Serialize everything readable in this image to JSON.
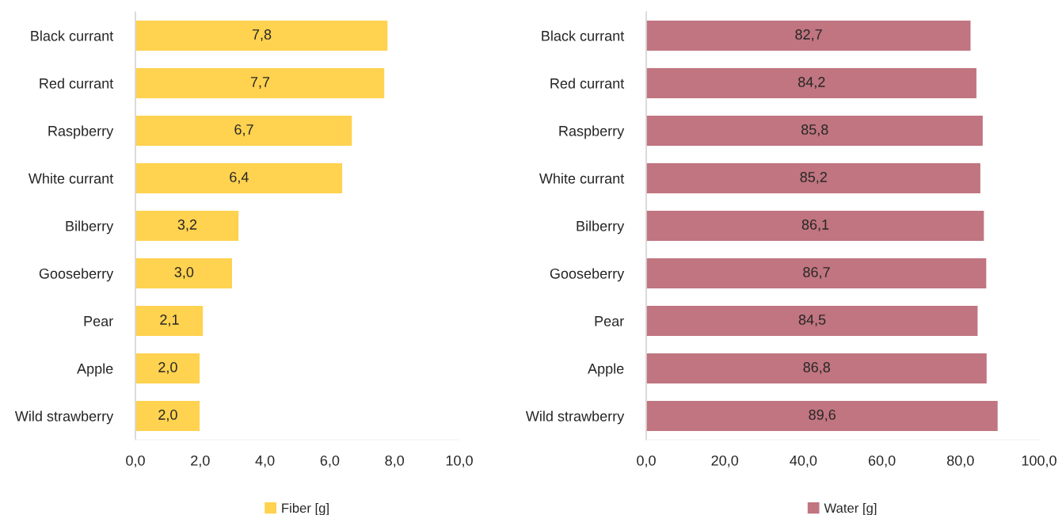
{
  "chart_data": [
    {
      "type": "bar",
      "orientation": "horizontal",
      "categories": [
        "Black currant",
        "Red currant",
        "Raspberry",
        "White currant",
        "Bilberry",
        "Gooseberry",
        "Pear",
        "Apple",
        "Wild strawberry"
      ],
      "series": [
        {
          "name": "Fiber [g]",
          "color": "#ffd24f",
          "values": [
            7.8,
            7.7,
            6.7,
            6.4,
            3.2,
            3.0,
            2.1,
            2.0,
            2.0
          ],
          "value_labels": [
            "7,8",
            "7,7",
            "6,7",
            "6,4",
            "3,2",
            "3,0",
            "2,1",
            "2,0",
            "2,0"
          ]
        }
      ],
      "xlim": [
        0,
        10
      ],
      "xticks": [
        {
          "value": 0,
          "label": "0,0"
        },
        {
          "value": 2,
          "label": "2,0"
        },
        {
          "value": 4,
          "label": "4,0"
        },
        {
          "value": 6,
          "label": "6,0"
        },
        {
          "value": 8,
          "label": "8,0"
        },
        {
          "value": 10,
          "label": "10,0"
        }
      ],
      "grid": false,
      "legend": "bottom"
    },
    {
      "type": "bar",
      "orientation": "horizontal",
      "categories": [
        "Black currant",
        "Red currant",
        "Raspberry",
        "White currant",
        "Bilberry",
        "Gooseberry",
        "Pear",
        "Apple",
        "Wild strawberry"
      ],
      "series": [
        {
          "name": "Water [g]",
          "color": "#c07580",
          "values": [
            82.7,
            84.2,
            85.8,
            85.2,
            86.1,
            86.7,
            84.5,
            86.8,
            89.6
          ],
          "value_labels": [
            "82,7",
            "84,2",
            "85,8",
            "85,2",
            "86,1",
            "86,7",
            "84,5",
            "86,8",
            "89,6"
          ]
        }
      ],
      "xlim": [
        0,
        100
      ],
      "xticks": [
        {
          "value": 0,
          "label": "0,0"
        },
        {
          "value": 20,
          "label": "20,0"
        },
        {
          "value": 40,
          "label": "40,0"
        },
        {
          "value": 60,
          "label": "60,0"
        },
        {
          "value": 80,
          "label": "80,0"
        },
        {
          "value": 100,
          "label": "100,0"
        }
      ],
      "grid": false,
      "legend": "bottom"
    }
  ]
}
